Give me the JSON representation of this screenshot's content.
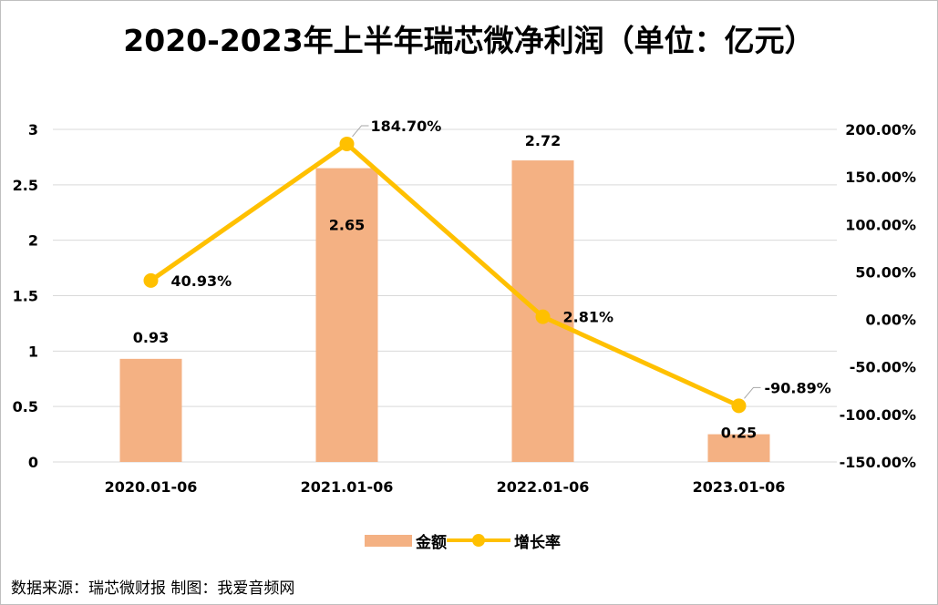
{
  "title": "2020-2023年上半年瑞芯微净利润（单位：亿元）",
  "source_note": "数据来源：瑞芯微财报 制图：我爱音频网",
  "colors": {
    "bar": "#f4b183",
    "line": "#ffc000",
    "grid": "#d9d9d9"
  },
  "chart_data": {
    "type": "bar",
    "categories": [
      "2020.01-06",
      "2021.01-06",
      "2022.01-06",
      "2023.01-06"
    ],
    "series": [
      {
        "name": "金额",
        "type": "bar",
        "axis": "left",
        "values": [
          0.93,
          2.65,
          2.72,
          0.25
        ],
        "labels": [
          "0.93",
          "2.65",
          "2.72",
          "0.25"
        ]
      },
      {
        "name": "增长率",
        "type": "line",
        "axis": "right",
        "values": [
          40.93,
          184.7,
          2.81,
          -90.89
        ],
        "labels": [
          "40.93%",
          "184.70%",
          "2.81%",
          "-90.89%"
        ]
      }
    ],
    "y_left": {
      "ylim": [
        0,
        3
      ],
      "ticks": [
        "0",
        "0.5",
        "1",
        "1.5",
        "2",
        "2.5",
        "3"
      ]
    },
    "y_right": {
      "ylim": [
        -150,
        200
      ],
      "ticks": [
        "-150.00%",
        "-100.00%",
        "-50.00%",
        "0.00%",
        "50.00%",
        "100.00%",
        "150.00%",
        "200.00%"
      ]
    },
    "grid": true,
    "legend": "bottom"
  }
}
